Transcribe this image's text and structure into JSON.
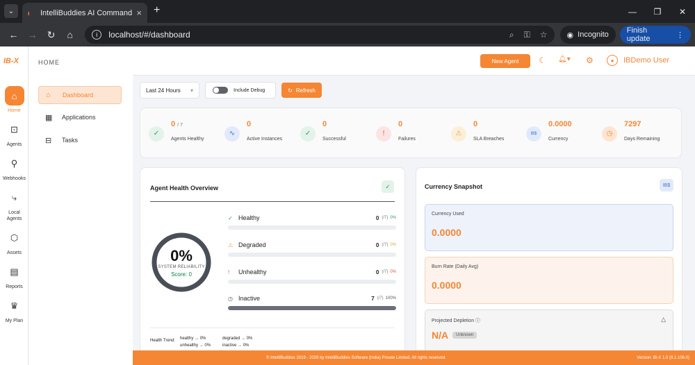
{
  "browser": {
    "tab_title": "IntelliBuddies AI Command Center",
    "url": "localhost/#/dashboard",
    "incognito_label": "Incognito",
    "update_label": "Finish update"
  },
  "rail": {
    "logo": "IB-X",
    "items": [
      {
        "label": "Home"
      },
      {
        "label": "Agents"
      },
      {
        "label": "Webhooks"
      },
      {
        "label": "Local Agents"
      },
      {
        "label": "Assets"
      },
      {
        "label": "Reports"
      },
      {
        "label": "My Plan"
      }
    ]
  },
  "sidebar": {
    "section": "HOME",
    "items": [
      {
        "label": "Dashboard"
      },
      {
        "label": "Applications"
      },
      {
        "label": "Tasks"
      }
    ]
  },
  "topbar": {
    "new_agent": "New Agent",
    "user": "IBDemo User"
  },
  "controls": {
    "range": "Last 24 Hours",
    "debug_label": "Include Debug",
    "refresh": "Refresh"
  },
  "stats": [
    {
      "value": "0",
      "sub": "/ 7",
      "label": "Agents Healthy",
      "color": "#2e9b5e",
      "bg": "#e3f3ea"
    },
    {
      "value": "0",
      "sub": "",
      "label": "Active Instances",
      "color": "#3b6fd9",
      "bg": "#e2eafa"
    },
    {
      "value": "0",
      "sub": "",
      "label": "Successful",
      "color": "#2e9b5e",
      "bg": "#e3f3ea"
    },
    {
      "value": "0",
      "sub": "",
      "label": "Failures",
      "color": "#d9534f",
      "bg": "#fbe5e4"
    },
    {
      "value": "0",
      "sub": "",
      "label": "SLA Breaches",
      "color": "#e8a33b",
      "bg": "#fcefd9"
    },
    {
      "value": "0.0000",
      "sub": "",
      "label": "Currency",
      "color": "#3b6fd9",
      "bg": "#e2eafa"
    },
    {
      "value": "7297",
      "sub": "",
      "label": "Days Remaining",
      "color": "#f58634",
      "bg": "#fde5d3"
    }
  ],
  "health": {
    "title": "Agent Health Overview",
    "percent": "0%",
    "ring_label": "SYSTEM RELIABILITY",
    "score": "Score: 0",
    "rows": [
      {
        "name": "Healthy",
        "count": "0",
        "total": "(/7)",
        "pct": "0%",
        "fill": 0,
        "color": "#2e9b5e",
        "icon": "✓"
      },
      {
        "name": "Degraded",
        "count": "0",
        "total": "(/7)",
        "pct": "0%",
        "fill": 0,
        "color": "#e8a33b",
        "icon": "⚠"
      },
      {
        "name": "Unhealthy",
        "count": "0",
        "total": "(/7)",
        "pct": "0%",
        "fill": 0,
        "color": "#d9534f",
        "icon": "!"
      },
      {
        "name": "Inactive",
        "count": "7",
        "total": "(/7)",
        "pct": "100%",
        "fill": 100,
        "color": "#555555",
        "icon": "◷"
      }
    ],
    "trend_label": "Health Trend:",
    "trends": [
      {
        "name": "healthy",
        "value": "0%"
      },
      {
        "name": "degraded",
        "value": "0%"
      },
      {
        "name": "unhealthy",
        "value": "0%"
      },
      {
        "name": "inactive",
        "value": "0%"
      }
    ]
  },
  "currency": {
    "title": "Currency Snapshot",
    "badge": "IB$",
    "used_label": "Currency Used",
    "used_value": "0.0000",
    "burn_label": "Burn Rate (Daily Avg)",
    "burn_value": "0.0000",
    "depletion_label": "Projected Depletion",
    "depletion_value": "N/A",
    "depletion_badge": "Unknown"
  },
  "footer": {
    "copyright": "© IntelliBuddies 2019 - 2026 by IntelliBuddies Software (India) Private Limited. All rights reserved.",
    "version": "Version: IB-X 1.0 (8.1.106.0)"
  }
}
